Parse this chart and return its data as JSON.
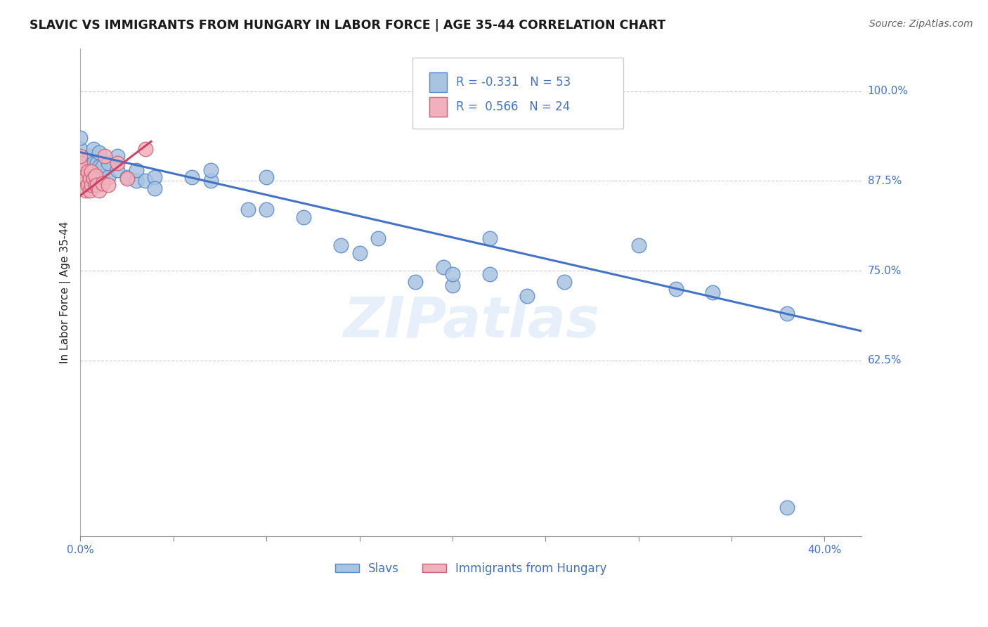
{
  "title": "SLAVIC VS IMMIGRANTS FROM HUNGARY IN LABOR FORCE | AGE 35-44 CORRELATION CHART",
  "source": "Source: ZipAtlas.com",
  "ylabel": "In Labor Force | Age 35-44",
  "xlim": [
    0.0,
    0.42
  ],
  "ylim": [
    0.38,
    1.06
  ],
  "x_tick_positions": [
    0.0,
    0.05,
    0.1,
    0.15,
    0.2,
    0.25,
    0.3,
    0.35,
    0.4
  ],
  "x_tick_labels": [
    "0.0%",
    "",
    "",
    "",
    "",
    "",
    "",
    "",
    "40.0%"
  ],
  "y_tick_positions": [
    0.625,
    0.75,
    0.875,
    1.0
  ],
  "y_tick_labels": [
    "62.5%",
    "75.0%",
    "87.5%",
    "100.0%"
  ],
  "legend_slavs_R": "-0.331",
  "legend_slavs_N": "53",
  "legend_hungary_R": "0.566",
  "legend_hungary_N": "24",
  "slavs_color": "#a8c4e0",
  "hungary_color": "#f0b0bc",
  "slavs_edge_color": "#5588cc",
  "hungary_edge_color": "#d06070",
  "slavs_line_color": "#4472c4",
  "hungary_line_color": "#cc4466",
  "title_color": "#1a1a1a",
  "tick_label_color": "#4472c4",
  "background_color": "#ffffff",
  "watermark": "ZIPatlas",
  "slavs_x": [
    0.0,
    0.0,
    0.0,
    0.0,
    0.0,
    0.005,
    0.005,
    0.006,
    0.006,
    0.007,
    0.007,
    0.007,
    0.008,
    0.008,
    0.009,
    0.01,
    0.01,
    0.01,
    0.012,
    0.012,
    0.015,
    0.015,
    0.02,
    0.02,
    0.025,
    0.03,
    0.03,
    0.035,
    0.04,
    0.04,
    0.06,
    0.07,
    0.07,
    0.09,
    0.1,
    0.1,
    0.12,
    0.14,
    0.15,
    0.16,
    0.18,
    0.195,
    0.2,
    0.2,
    0.22,
    0.22,
    0.24,
    0.26,
    0.3,
    0.32,
    0.34,
    0.38,
    0.38
  ],
  "slavs_y": [
    0.88,
    0.89,
    0.905,
    0.92,
    0.935,
    0.885,
    0.91,
    0.875,
    0.895,
    0.88,
    0.9,
    0.92,
    0.875,
    0.885,
    0.9,
    0.88,
    0.895,
    0.915,
    0.88,
    0.895,
    0.88,
    0.9,
    0.89,
    0.91,
    0.88,
    0.875,
    0.89,
    0.875,
    0.88,
    0.865,
    0.88,
    0.875,
    0.89,
    0.835,
    0.88,
    0.835,
    0.825,
    0.785,
    0.775,
    0.795,
    0.735,
    0.755,
    0.73,
    0.745,
    0.795,
    0.745,
    0.715,
    0.735,
    0.785,
    0.725,
    0.72,
    0.69,
    0.42
  ],
  "hungary_x": [
    0.0,
    0.0,
    0.0,
    0.0,
    0.0,
    0.003,
    0.003,
    0.004,
    0.004,
    0.005,
    0.005,
    0.006,
    0.006,
    0.007,
    0.008,
    0.008,
    0.009,
    0.01,
    0.012,
    0.013,
    0.015,
    0.02,
    0.025,
    0.035
  ],
  "hungary_y": [
    0.875,
    0.88,
    0.89,
    0.9,
    0.91,
    0.862,
    0.878,
    0.87,
    0.888,
    0.862,
    0.878,
    0.87,
    0.888,
    0.878,
    0.87,
    0.882,
    0.87,
    0.862,
    0.872,
    0.91,
    0.87,
    0.9,
    0.878,
    0.92
  ]
}
